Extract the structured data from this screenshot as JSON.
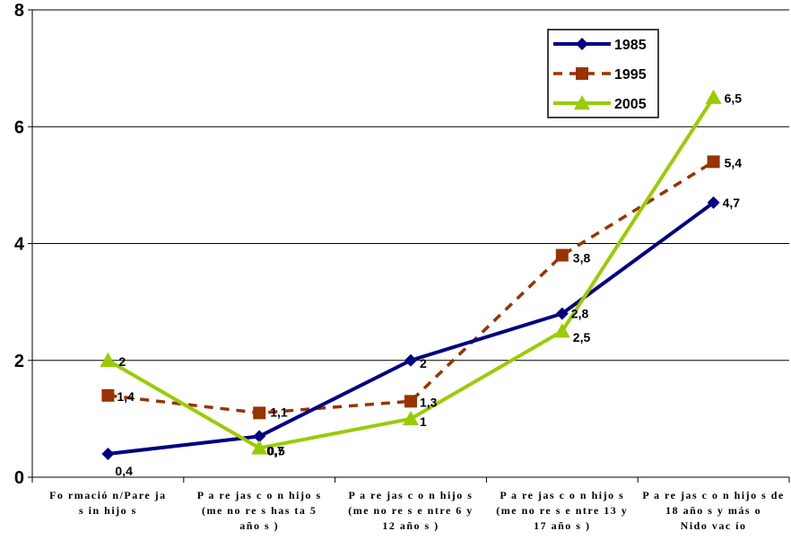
{
  "chart_data": {
    "type": "line",
    "categories": [
      [
        "Fo rmació n/Pare ja",
        "s in hijo s"
      ],
      [
        "P a re jas c o n hijo s",
        "(me no re s has ta 5",
        "año s )"
      ],
      [
        "P a re jas c o n hijo s",
        "(me no re s e ntre 6 y",
        "12 año s )"
      ],
      [
        "P a re jas c o n hijo s",
        "(me no re s e ntre 13 y",
        "17 año s )"
      ],
      [
        "P a re jas c o n hijo s de",
        "18 año s y más o",
        "Nido vac ío"
      ]
    ],
    "series": [
      {
        "name": "1985",
        "values": [
          0.4,
          0.7,
          2,
          2.8,
          4.7
        ],
        "labels": [
          "0,4",
          "0,7",
          "2",
          "2,8",
          "4,7"
        ],
        "color": "#000080",
        "marker": "diamond",
        "dash": "solid"
      },
      {
        "name": "1995",
        "values": [
          1.4,
          1.1,
          1.3,
          3.8,
          5.4
        ],
        "labels": [
          "1,4",
          "1,1",
          "1,3",
          "3,8",
          "5,4"
        ],
        "color": "#993300",
        "marker": "square",
        "dash": "dashed"
      },
      {
        "name": "2005",
        "values": [
          2,
          0.5,
          1,
          2.5,
          6.5
        ],
        "labels": [
          "2",
          "0,5",
          "1",
          "2,5",
          "6,5"
        ],
        "color": "#99CC00",
        "marker": "triangle",
        "dash": "solid"
      }
    ],
    "yticks": [
      "0",
      "2",
      "4",
      "6",
      "8"
    ],
    "ylim": [
      0,
      8
    ],
    "grid": true,
    "legend_position": "top-right",
    "title": "",
    "xlabel": "",
    "ylabel": ""
  }
}
